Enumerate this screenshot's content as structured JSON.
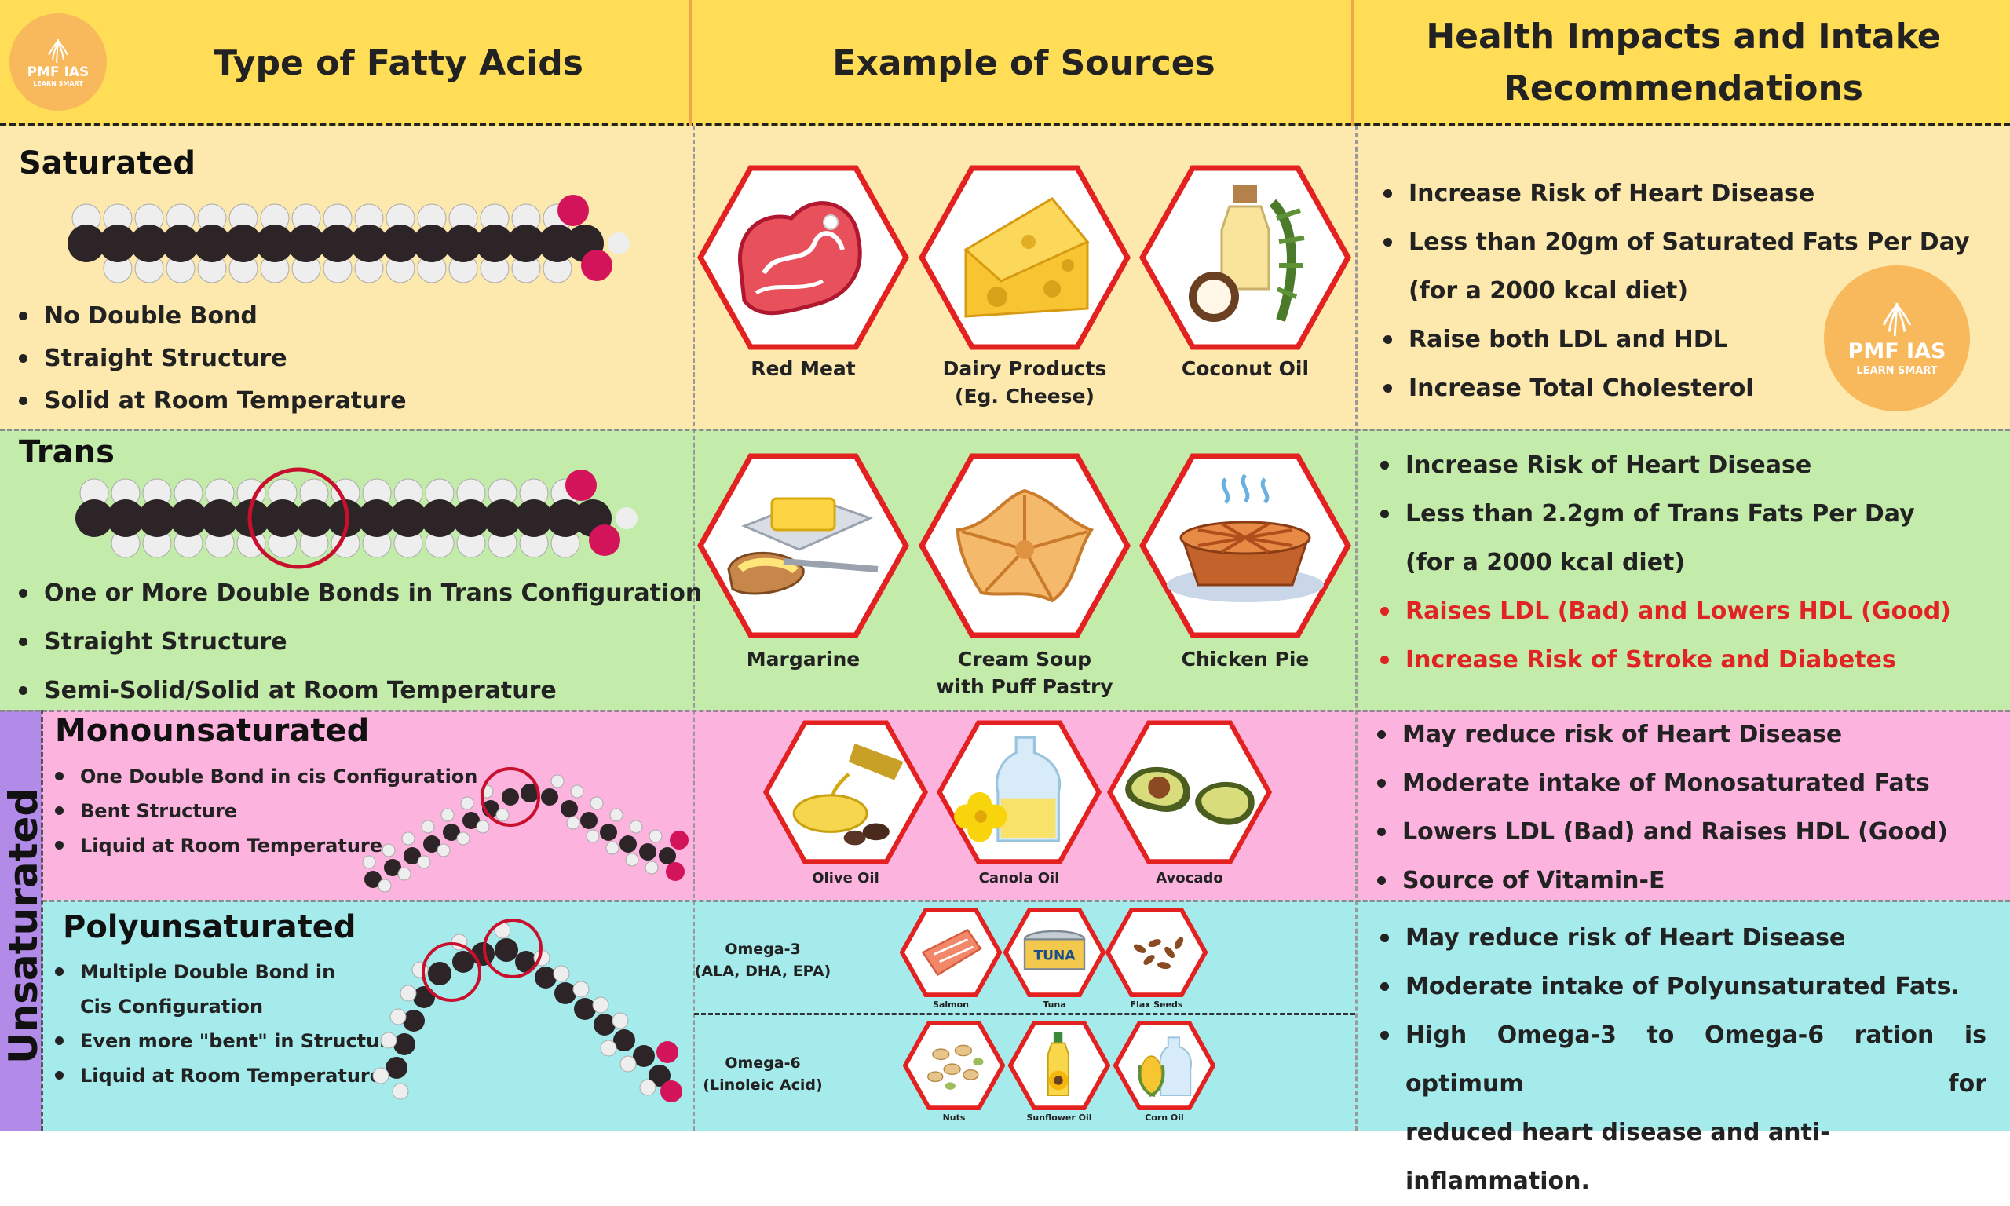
{
  "header": {
    "col1": "Type of Fatty Acids",
    "col2": "Example of Sources",
    "col3_line1": "Health Impacts and Intake",
    "col3_line2": "Recommendations"
  },
  "logo": {
    "name": "PMF IAS",
    "tagline": "LEARN SMART"
  },
  "saturated": {
    "title": "Saturated",
    "bullets": [
      "No Double Bond",
      "Straight Structure",
      "Solid at Room Temperature"
    ],
    "sources": [
      {
        "label": "Red Meat",
        "icon": "red-meat-icon"
      },
      {
        "label": "Dairy Products",
        "label2": "(Eg. Cheese)",
        "icon": "cheese-icon"
      },
      {
        "label": "Coconut Oil",
        "icon": "coconut-oil-icon"
      }
    ],
    "impacts": [
      "Increase Risk of Heart Disease",
      "Less than 20gm of Saturated Fats Per Day",
      "(for a 2000 kcal diet)",
      "Raise both LDL and HDL",
      "Increase Total Cholesterol"
    ]
  },
  "trans": {
    "title": "Trans",
    "bullets": [
      "One or More Double Bonds in Trans Configuration",
      "Straight Structure",
      "Semi-Solid/Solid at Room Temperature"
    ],
    "sources": [
      {
        "label": "Margarine",
        "icon": "margarine-icon"
      },
      {
        "label": "Cream Soup",
        "label2": "with Puff Pastry",
        "icon": "puff-pastry-icon"
      },
      {
        "label": "Chicken Pie",
        "icon": "chicken-pie-icon"
      }
    ],
    "impacts": [
      "Increase Risk of Heart Disease",
      "Less than 2.2gm of Trans Fats Per Day",
      "(for a 2000 kcal diet)",
      "Raises LDL (Bad) and Lowers HDL (Good)",
      "Increase Risk of Stroke and Diabetes"
    ]
  },
  "unsaturated": {
    "label": "Unsaturated"
  },
  "mono": {
    "title": "Monounsaturated",
    "bullets": [
      "One Double Bond in cis Configuration",
      "Bent Structure",
      "Liquid at Room Temperature"
    ],
    "sources": [
      {
        "label": "Olive Oil",
        "icon": "olive-oil-icon"
      },
      {
        "label": "Canola Oil",
        "icon": "canola-oil-icon"
      },
      {
        "label": "Avocado",
        "icon": "avocado-icon"
      }
    ],
    "impacts": [
      "May reduce risk of Heart Disease",
      "Moderate intake of Monosaturated Fats",
      "Lowers LDL (Bad) and Raises HDL (Good)",
      "Source of Vitamin-E"
    ]
  },
  "poly": {
    "title": "Polyunsaturated",
    "bullets": [
      "Multiple Double Bond in",
      "Cis Configuration",
      "Even more \"bent\" in Structure",
      "Liquid at Room Temperature"
    ],
    "omega3": {
      "label": "Omega-3",
      "sub": "(ALA, DHA, EPA)",
      "sources": [
        "Salmon",
        "Tuna",
        "Flax Seeds"
      ],
      "tuna_text": "TUNA"
    },
    "omega6": {
      "label": "Omega-6",
      "sub": "(Linoleic Acid)",
      "sources": [
        "Nuts",
        "Sunflower Oil",
        "Corn Oil"
      ]
    },
    "impacts": [
      "May reduce risk of Heart Disease",
      "Moderate intake of Polyunsaturated Fats.",
      "High Omega-3 to Omega-6 ration is optimum for",
      "reduced heart disease and anti-inflammation."
    ]
  },
  "colors": {
    "header": "#ffdd57",
    "saturated": "#fde9ad",
    "trans": "#c3ecaa",
    "mono": "#fcb3de",
    "poly": "#a6ebec",
    "hex_border": "#e32121",
    "warning": "#e02424",
    "logo": "#f8b85c"
  }
}
